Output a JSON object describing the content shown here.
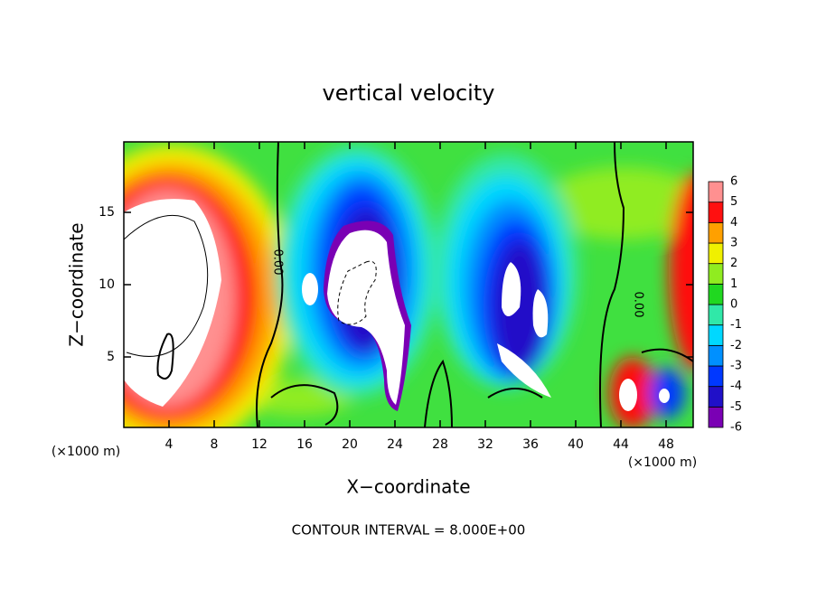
{
  "chart_data": {
    "type": "contour",
    "title": "vertical velocity",
    "x_label": "X−coordinate",
    "y_label": "Z−coordinate",
    "x_unit_labels": [
      "(×1000 m)",
      "(×1000 m)"
    ],
    "xlim": [
      0,
      50.4
    ],
    "xticks": [
      4,
      8,
      12,
      16,
      20,
      24,
      28,
      32,
      36,
      40,
      44,
      48
    ],
    "ylim": [
      0.125,
      19.875
    ],
    "yticks": [
      5,
      10,
      15
    ],
    "colorbar": {
      "levels": [
        -6,
        -5,
        -4,
        -3,
        -2,
        -1,
        0,
        1,
        2,
        3,
        4,
        5,
        6
      ],
      "colors": [
        "#7a00b4",
        "#2010c8",
        "#0038ff",
        "#0090ff",
        "#00d8ff",
        "#30e8a8",
        "#20d820",
        "#90ec20",
        "#f0f000",
        "#ffa000",
        "#ff1010",
        "#ff9090"
      ]
    },
    "contour_labels": [
      "0.00",
      "0.00"
    ],
    "footnote": "CONTOUR INTERVAL = 8.000E+00"
  }
}
